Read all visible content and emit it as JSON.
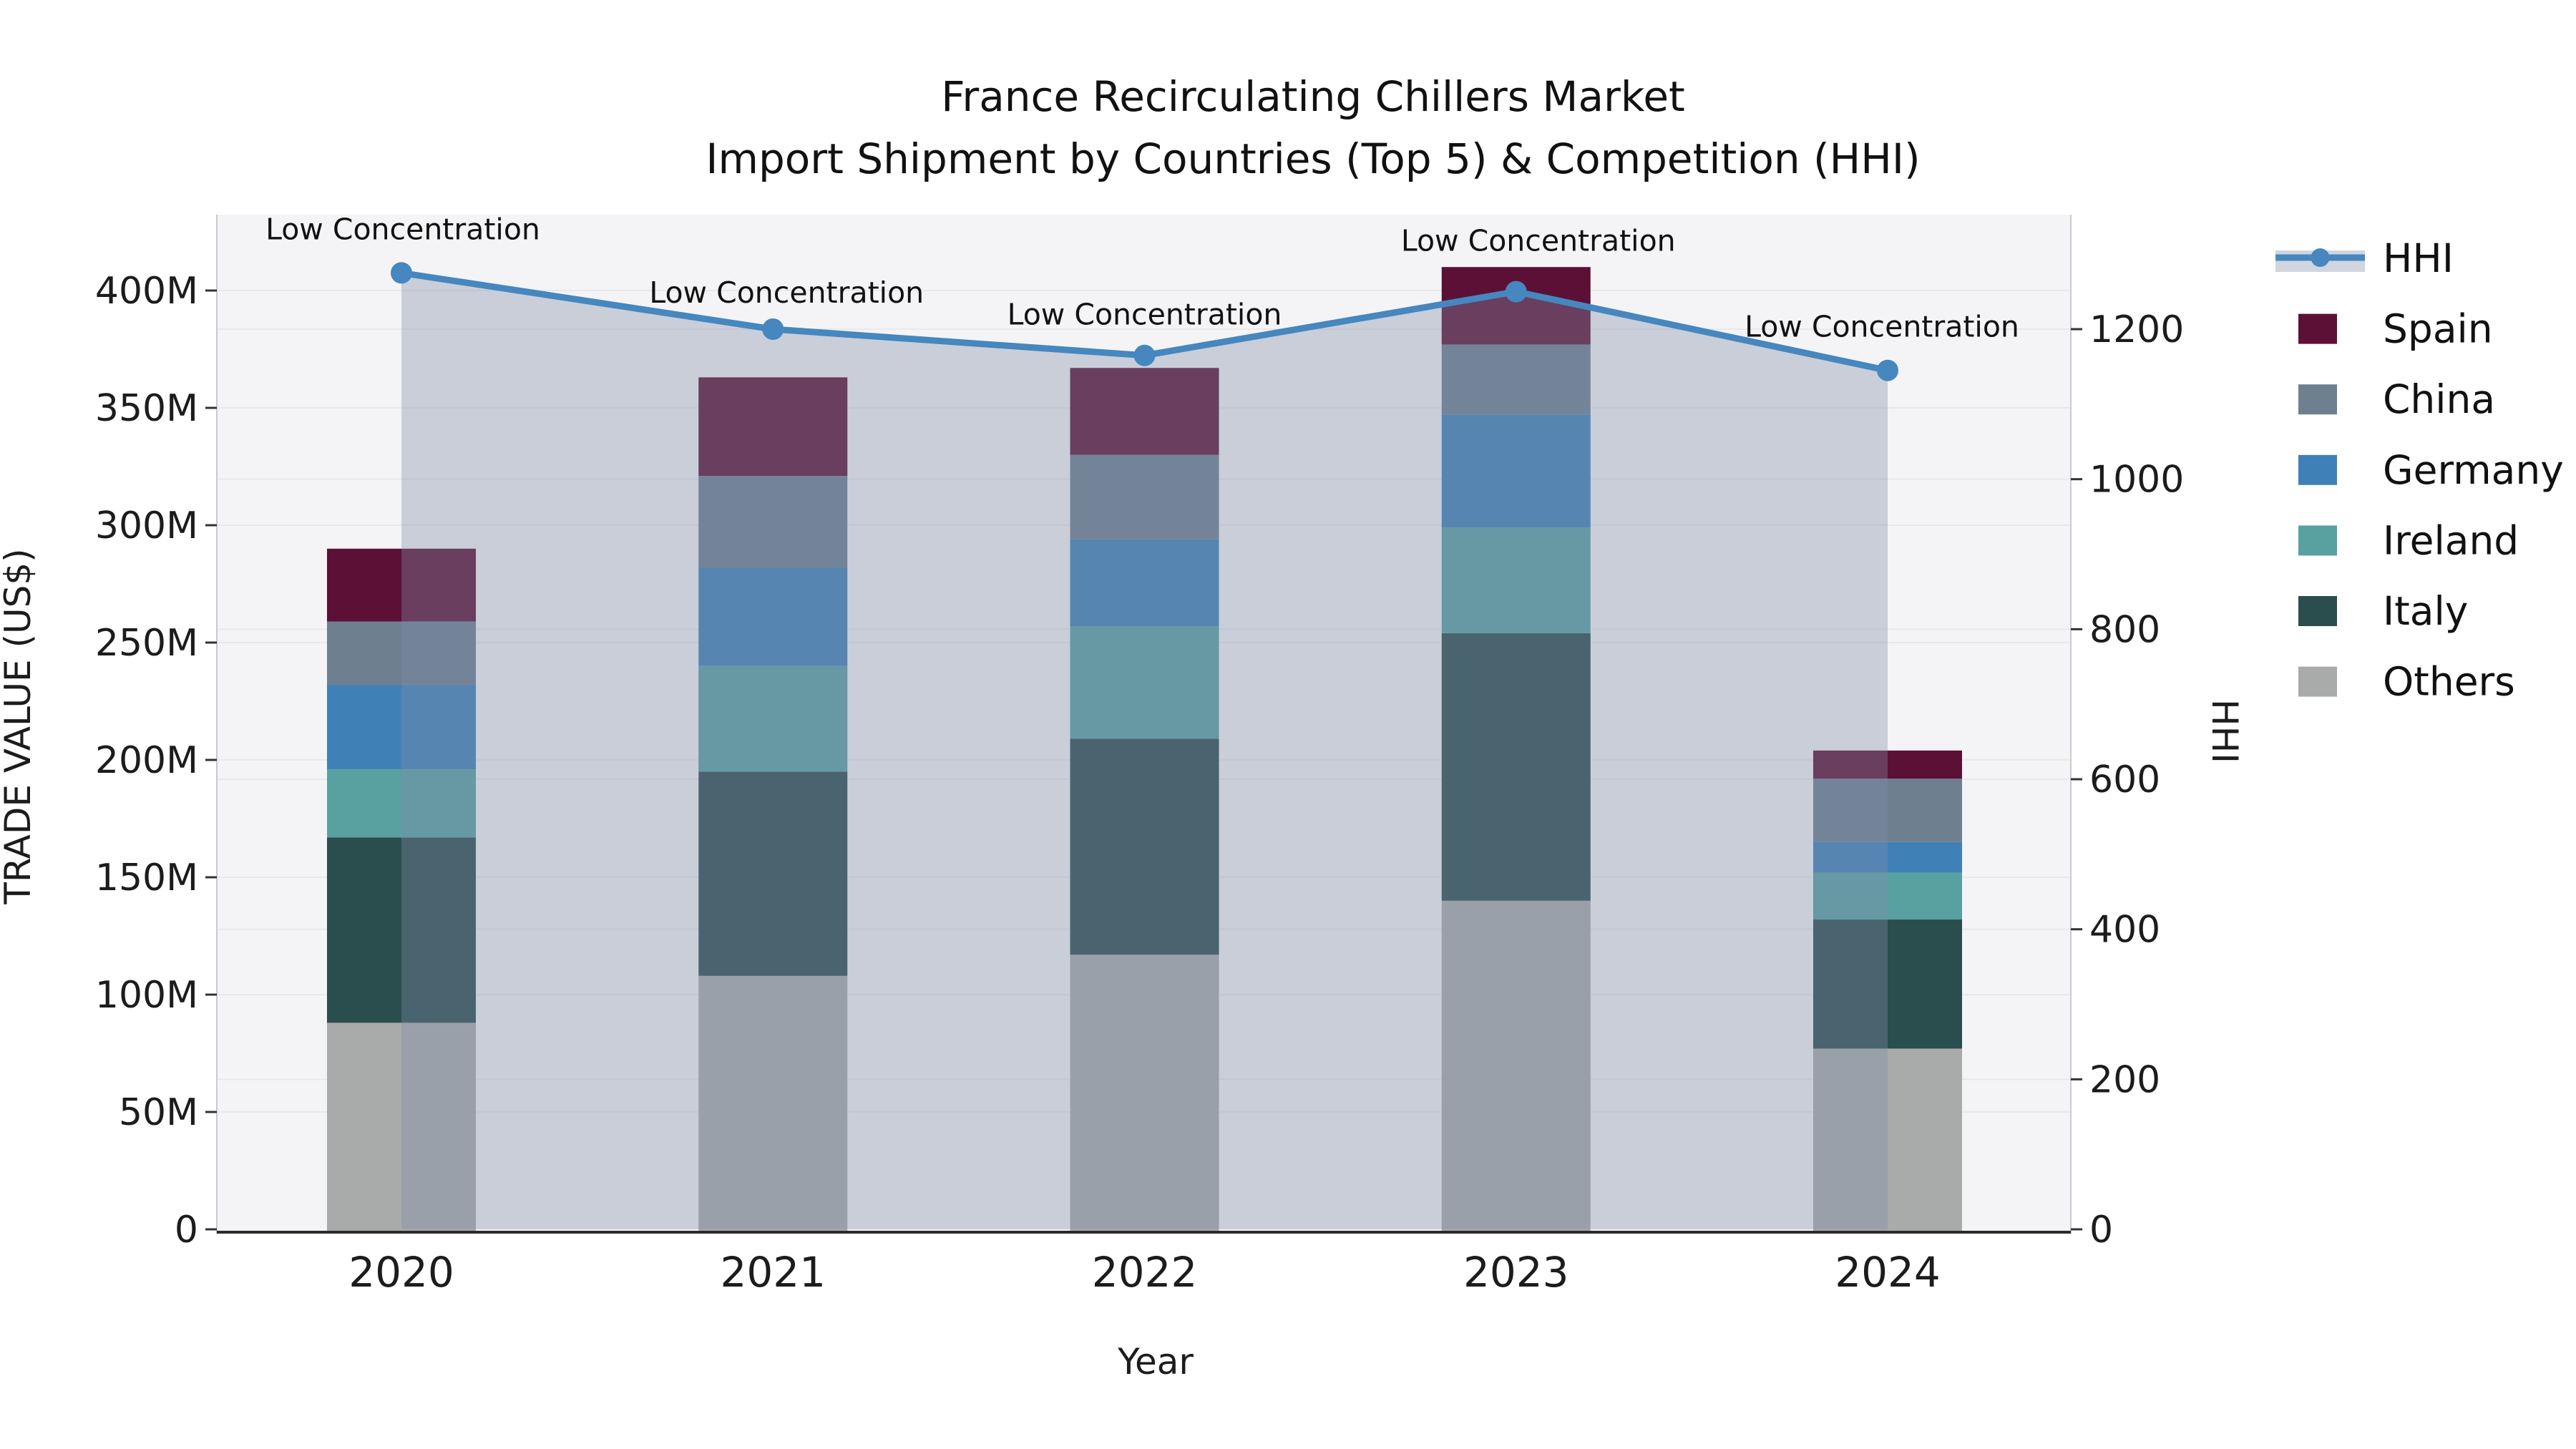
{
  "title": {
    "line1": "France Recirculating Chillers Market",
    "line2": "Import Shipment by Countries (Top 5) & Competition (HHI)"
  },
  "axes": {
    "x_label": "Year",
    "y_left_label": "TRADE VALUE (US$)",
    "y_right_label": "HHI",
    "y_left_tick_labels": [
      "0",
      "50M",
      "100M",
      "150M",
      "200M",
      "250M",
      "300M",
      "350M",
      "400M"
    ],
    "y_left_tick_values": [
      0,
      50,
      100,
      150,
      200,
      250,
      300,
      350,
      400
    ],
    "y_right_tick_labels": [
      "0",
      "200",
      "400",
      "600",
      "800",
      "1000",
      "1200"
    ],
    "y_right_tick_values": [
      0,
      200,
      400,
      600,
      800,
      1000,
      1200
    ]
  },
  "legend": {
    "items": [
      {
        "label": "HHI",
        "type": "line",
        "color": "#4587be"
      },
      {
        "label": "Spain",
        "type": "swatch",
        "color": "#5c1035"
      },
      {
        "label": "China",
        "type": "swatch",
        "color": "#6e7f8f"
      },
      {
        "label": "Germany",
        "type": "swatch",
        "color": "#3f80b7"
      },
      {
        "label": "Ireland",
        "type": "swatch",
        "color": "#58a1a0"
      },
      {
        "label": "Italy",
        "type": "swatch",
        "color": "#2a4d4d"
      },
      {
        "label": "Others",
        "type": "swatch",
        "color": "#a8abaa"
      }
    ]
  },
  "colors": {
    "plot_background": "#f4f4f6",
    "grid": "#e8e9ec",
    "hhi_line": "#4587be",
    "hhi_area_fill": "rgba(128,141,168,0.37)",
    "bottom_axis": "#2b2b2b",
    "spine": "#c9cbcf"
  },
  "chart_data": {
    "type": "combo: stacked bar (trade value, US$ millions) + line (HHI, right axis)",
    "categories": [
      "2020",
      "2021",
      "2022",
      "2023",
      "2024"
    ],
    "stack_order_bottom_to_top": [
      "Others",
      "Italy",
      "Ireland",
      "Germany",
      "China",
      "Spain"
    ],
    "series": [
      {
        "name": "Others",
        "color": "#a8abaa",
        "values": [
          88,
          108,
          117,
          140,
          77
        ]
      },
      {
        "name": "Italy",
        "color": "#2a4d4d",
        "values": [
          79,
          87,
          92,
          114,
          55
        ]
      },
      {
        "name": "Ireland",
        "color": "#58a1a0",
        "values": [
          29,
          45,
          48,
          45,
          20
        ]
      },
      {
        "name": "Germany",
        "color": "#3f80b7",
        "values": [
          36,
          42,
          37,
          48,
          13
        ]
      },
      {
        "name": "China",
        "color": "#6e7f8f",
        "values": [
          27,
          39,
          36,
          30,
          27
        ]
      },
      {
        "name": "Spain",
        "color": "#5c1035",
        "values": [
          31,
          42,
          37,
          33,
          12
        ]
      }
    ],
    "bar_totals_musd": [
      290,
      363,
      367,
      410,
      204
    ],
    "line_series": {
      "name": "HHI",
      "color": "#4587be",
      "values": [
        1275,
        1200,
        1165,
        1250,
        1145
      ],
      "point_annotations": [
        "Low Concentration",
        "Low Concentration",
        "Low Concentration",
        "Low Concentration",
        "Low Concentration"
      ],
      "area_fill_under_line": true
    },
    "title": "France Recirculating Chillers Market — Import Shipment by Countries (Top 5) & Competition (HHI)",
    "xlabel": "Year",
    "ylabel": "TRADE VALUE (US$)",
    "y2label": "HHI",
    "ylim_left_musd": [
      0,
      432
    ],
    "ylim_right_hhi": [
      0,
      1385
    ],
    "grid": true,
    "legend_position": "right"
  }
}
